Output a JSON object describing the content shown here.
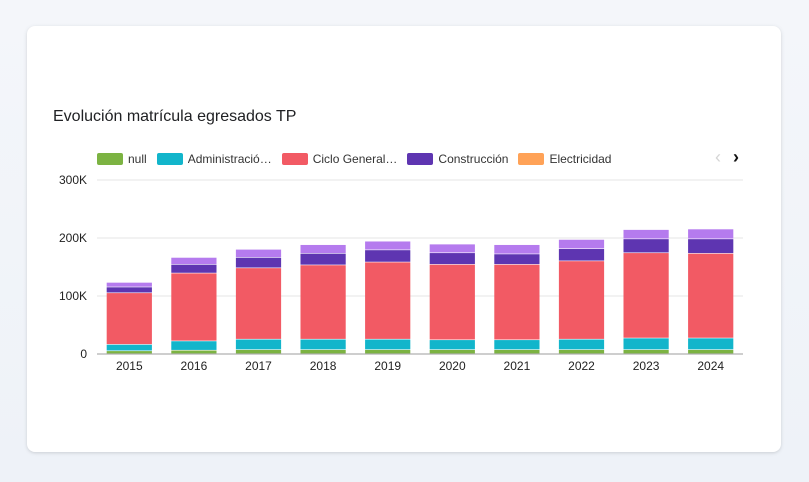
{
  "chart_data": {
    "type": "bar",
    "stacked": true,
    "title": "Evolución matrícula egresados TP",
    "xlabel": "",
    "ylabel": "",
    "categories": [
      "2015",
      "2016",
      "2017",
      "2018",
      "2019",
      "2020",
      "2021",
      "2022",
      "2023",
      "2024"
    ],
    "ylim": [
      0,
      300000
    ],
    "yticks": [
      0,
      100000,
      200000,
      300000
    ],
    "ytick_labels": [
      "0",
      "100K",
      "200K",
      "300K"
    ],
    "grid": true,
    "legend_position": "top-left",
    "series": [
      {
        "name": "null",
        "color": "#7cb342",
        "values": [
          5000,
          6000,
          7000,
          7000,
          7000,
          7000,
          7000,
          7000,
          7000,
          7000
        ]
      },
      {
        "name": "Administració…",
        "color": "#12b5cb",
        "values": [
          11000,
          16000,
          18000,
          18000,
          18000,
          17000,
          17000,
          18000,
          20000,
          20000
        ]
      },
      {
        "name": "Ciclo General…",
        "color": "#f25a64",
        "values": [
          89000,
          117000,
          123000,
          128000,
          133000,
          130000,
          130000,
          135000,
          147000,
          146000
        ]
      },
      {
        "name": "Construcción",
        "color": "#5e35b1",
        "values": [
          10000,
          15000,
          18000,
          20000,
          21000,
          20000,
          18000,
          21000,
          24000,
          25000
        ]
      },
      {
        "name": "Electricidad",
        "color": "#ffa257",
        "values": [
          0,
          0,
          0,
          0,
          0,
          0,
          0,
          0,
          0,
          0
        ]
      },
      {
        "name": "",
        "color": "#b57bee",
        "values": [
          8000,
          12000,
          14000,
          15000,
          15000,
          15000,
          16000,
          16000,
          16000,
          17000
        ]
      }
    ]
  },
  "legend": {
    "prev_icon": "chevron-left-icon",
    "next_icon": "chevron-right-icon"
  }
}
